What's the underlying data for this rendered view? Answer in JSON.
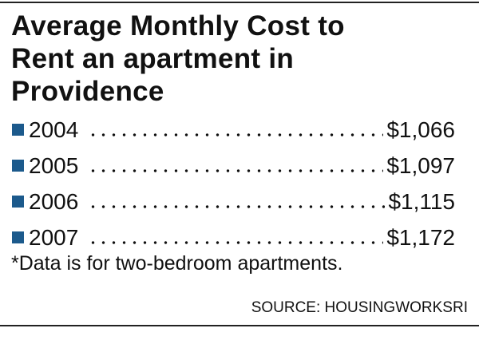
{
  "header": {
    "title": "Average Monthly Cost to Rent an apartment in Providence"
  },
  "table": {
    "rows": [
      [
        "2004",
        "$1,066"
      ],
      [
        "2005",
        "$1,097"
      ],
      [
        "2006",
        "$1,115"
      ],
      [
        "2007",
        "$1,172"
      ]
    ]
  },
  "footnote": "*Data is for two-bedroom apartments.",
  "source": "SOURCE: HOUSINGWORKSRI"
}
